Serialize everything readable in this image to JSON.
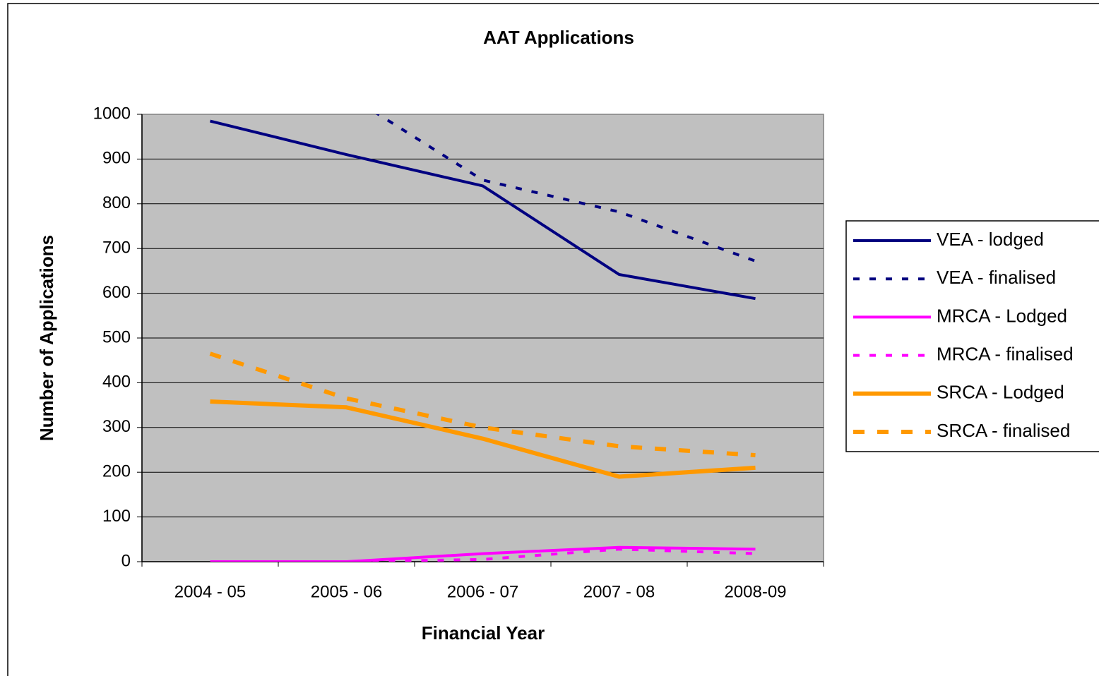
{
  "chart_data": {
    "type": "line",
    "title": "AAT Applications",
    "x_label": "Financial Year",
    "y_label": "Number of Applications",
    "categories": [
      "2004 - 05",
      "2005 - 06",
      "2006 - 07",
      "2007 - 08",
      "2008-09"
    ],
    "series": [
      {
        "name": "VEA - lodged",
        "color": "#000080",
        "style": "solid",
        "values": [
          985,
          910,
          840,
          642,
          588
        ]
      },
      {
        "name": "VEA - finalised",
        "color": "#000080",
        "style": "dashed",
        "values": [
          null,
          1045,
          853,
          782,
          672
        ]
      },
      {
        "name": "MRCA - Lodged",
        "color": "#ff00ff",
        "style": "solid",
        "values": [
          0,
          0,
          18,
          32,
          28
        ]
      },
      {
        "name": "MRCA - finalised",
        "color": "#ff00ff",
        "style": "dashed",
        "values": [
          0,
          0,
          5,
          28,
          18
        ]
      },
      {
        "name": "SRCA - Lodged",
        "color": "#ff9900",
        "style": "solid",
        "values": [
          358,
          345,
          275,
          190,
          210
        ]
      },
      {
        "name": "SRCA - finalised",
        "color": "#ff9900",
        "style": "dashed",
        "values": [
          465,
          365,
          300,
          258,
          238
        ]
      }
    ],
    "ylim": [
      0,
      1000
    ],
    "yticks": [
      0,
      100,
      200,
      300,
      400,
      500,
      600,
      700,
      800,
      900,
      1000
    ],
    "grid": true,
    "legend": "right"
  }
}
